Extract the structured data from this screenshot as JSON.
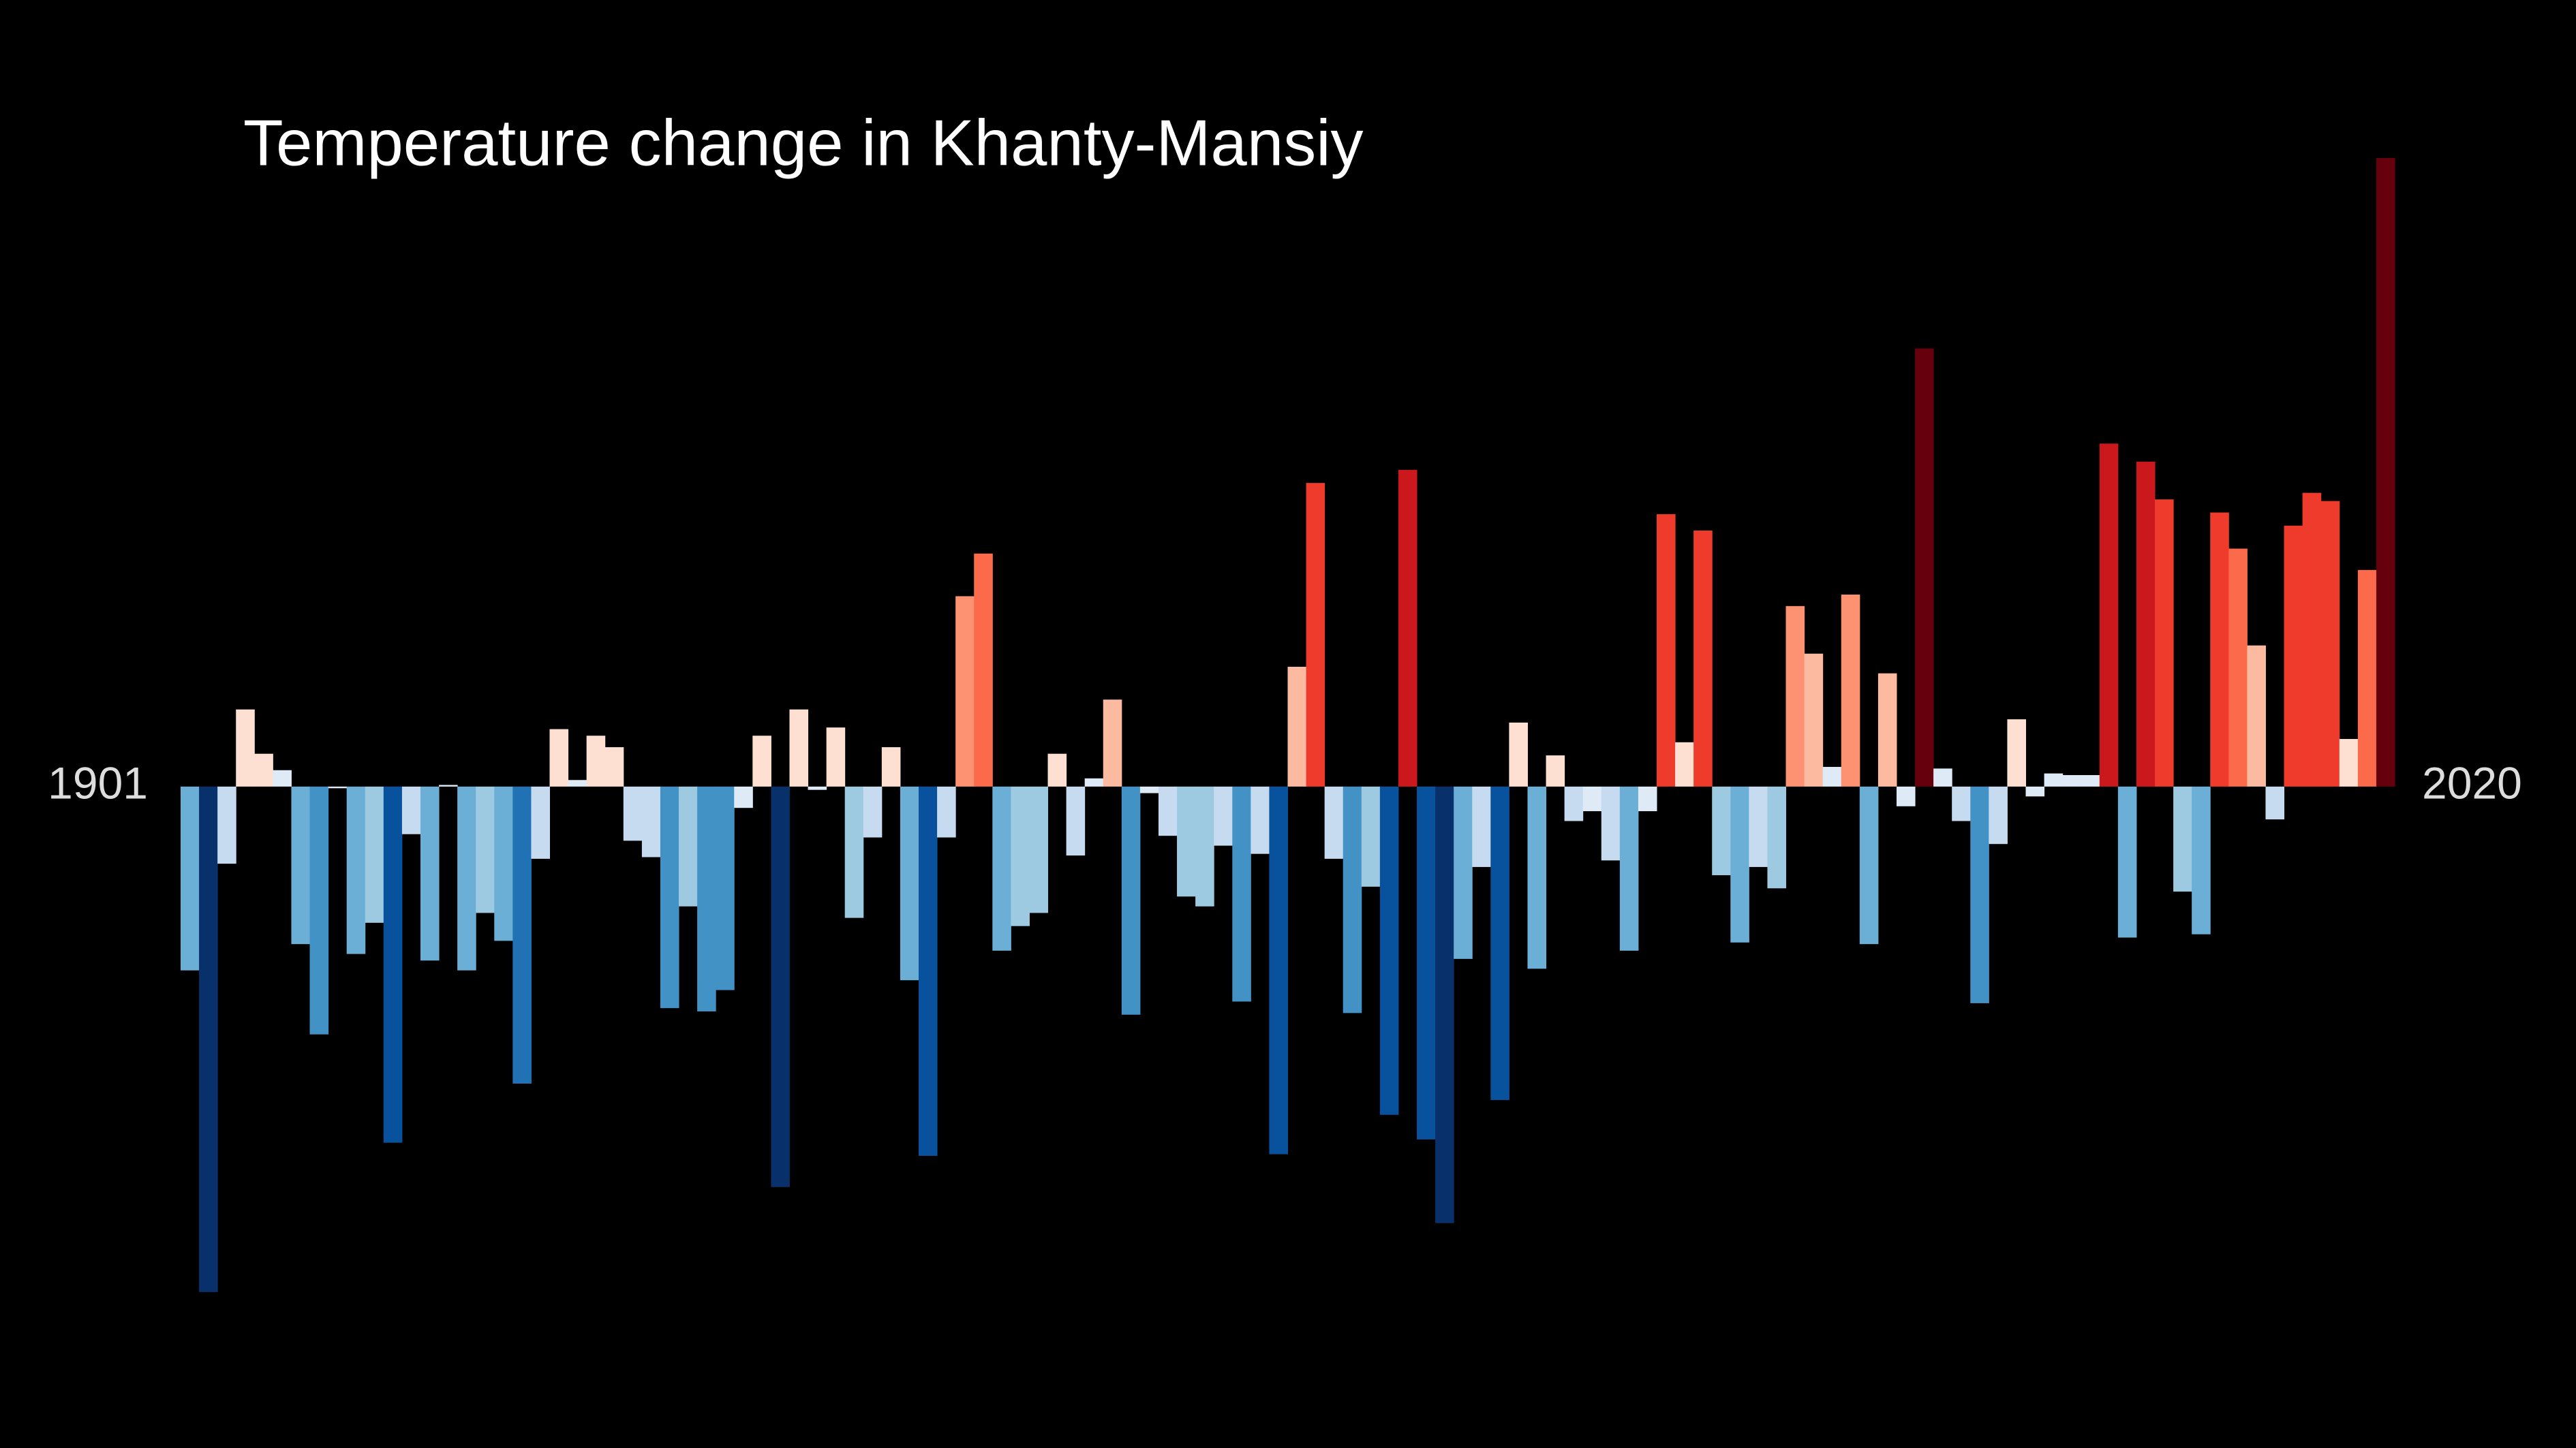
{
  "chart_data": {
    "type": "bar",
    "title": "Temperature change in Khanty-Mansiy",
    "categories": [
      "1901",
      null,
      null,
      null,
      null,
      null,
      null,
      null,
      null,
      null,
      null,
      null,
      null,
      null,
      null,
      null,
      null,
      null,
      null,
      null,
      null,
      null,
      null,
      null,
      null,
      null,
      null,
      null,
      null,
      null,
      null,
      null,
      null,
      null,
      null,
      null,
      null,
      null,
      null,
      null,
      null,
      null,
      null,
      null,
      null,
      null,
      null,
      null,
      null,
      null,
      null,
      null,
      null,
      null,
      null,
      null,
      null,
      null,
      null,
      null,
      null,
      null,
      null,
      null,
      null,
      null,
      null,
      null,
      null,
      null,
      null,
      null,
      null,
      null,
      null,
      null,
      null,
      null,
      null,
      null,
      null,
      null,
      null,
      null,
      null,
      null,
      null,
      null,
      null,
      null,
      null,
      null,
      null,
      null,
      null,
      null,
      null,
      null,
      null,
      null,
      null,
      null,
      null,
      null,
      null,
      null,
      null,
      null,
      null,
      null,
      null,
      null,
      null,
      null,
      null,
      null,
      null,
      null,
      null,
      "2020"
    ],
    "values": [
      -1.12,
      -3.08,
      -0.47,
      0.47,
      0.2,
      0.1,
      -0.96,
      -1.51,
      -0.01,
      -1.02,
      -0.83,
      -2.17,
      -0.29,
      -1.06,
      0.01,
      -1.12,
      -0.77,
      -0.94,
      -1.81,
      -0.44,
      0.35,
      0.04,
      0.31,
      0.24,
      -0.33,
      -0.43,
      -1.35,
      -0.73,
      -1.37,
      -1.24,
      -0.13,
      0.31,
      -2.44,
      0.47,
      -0.02,
      0.36,
      -0.8,
      -0.31,
      0.24,
      -1.18,
      -2.25,
      -0.31,
      1.16,
      1.42,
      -1.0,
      -0.85,
      -0.77,
      0.2,
      -0.42,
      0.05,
      0.53,
      -1.39,
      -0.04,
      -0.3,
      -0.67,
      -0.73,
      -0.36,
      -1.31,
      -0.41,
      -2.24,
      0.73,
      1.85,
      -0.44,
      -1.38,
      -0.61,
      -2.0,
      1.93,
      -2.15,
      -2.66,
      -1.05,
      -0.49,
      -1.91,
      0.39,
      -1.11,
      0.19,
      -0.21,
      -0.15,
      -0.45,
      -1.0,
      -0.15,
      1.66,
      0.27,
      1.56,
      -0.54,
      -0.95,
      -0.49,
      -0.62,
      1.1,
      0.81,
      0.12,
      1.17,
      -0.96,
      0.69,
      -0.12,
      2.67,
      0.11,
      -0.21,
      -1.32,
      -0.35,
      0.41,
      -0.06,
      0.08,
      0.07,
      0.07,
      2.09,
      -0.92,
      1.98,
      1.75,
      -0.64,
      -0.9,
      1.67,
      1.45,
      0.86,
      -0.2,
      1.59,
      1.79,
      1.74,
      0.29,
      1.32,
      3.83
    ],
    "ylim": [
      -3.3,
      4.1
    ],
    "colormap": [
      "#08306b",
      "#08519c",
      "#2171b5",
      "#4292c6",
      "#6baed6",
      "#9ecae1",
      "#c6dbef",
      "#deebf7",
      "#fee0d2",
      "#fcbba1",
      "#fc9272",
      "#fb6a4a",
      "#ef3b2c",
      "#cb181d",
      "#67000d"
    ],
    "clim": [
      -2.6,
      2.6
    ]
  }
}
